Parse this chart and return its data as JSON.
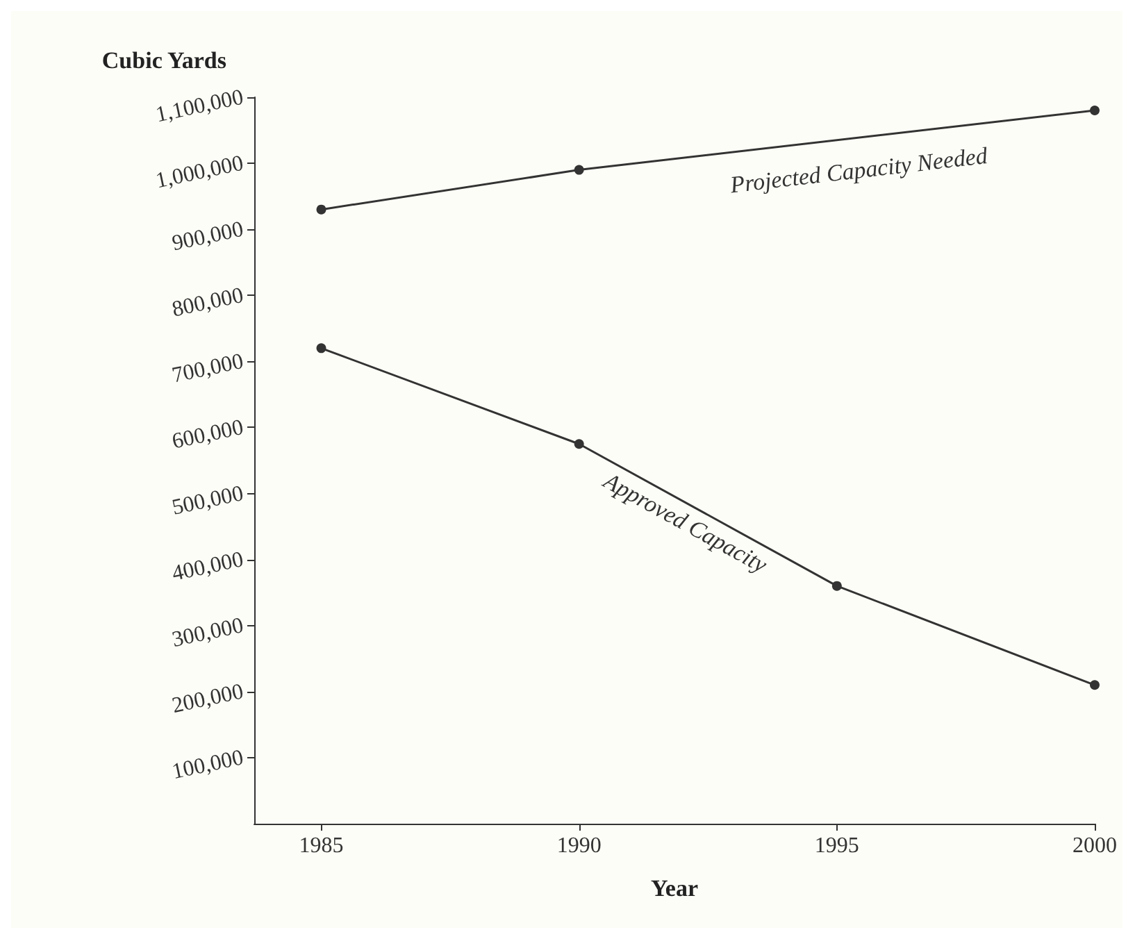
{
  "chart_data": {
    "type": "line",
    "xlabel": "Year",
    "ylabel": "Cubic Yards",
    "x": [
      1985,
      1990,
      1995,
      2000
    ],
    "series": [
      {
        "name": "Projected Capacity Needed",
        "values": [
          930000,
          990000,
          null,
          1080000
        ],
        "color": "#333333"
      },
      {
        "name": "Approved Capacity",
        "values": [
          720000,
          575000,
          360000,
          210000
        ],
        "color": "#333333"
      }
    ],
    "xlim": [
      1983.7,
      2000
    ],
    "xticks": [
      1985,
      1990,
      1995,
      2000
    ],
    "ylim": [
      0,
      1100000
    ],
    "yticks": [
      {
        "value": 100000,
        "label": "100,000"
      },
      {
        "value": 200000,
        "label": "200,000"
      },
      {
        "value": 300000,
        "label": "300,000"
      },
      {
        "value": 400000,
        "label": "400,000"
      },
      {
        "value": 500000,
        "label": "500,000"
      },
      {
        "value": 600000,
        "label": "600,000"
      },
      {
        "value": 700000,
        "label": "700,000"
      },
      {
        "value": 800000,
        "label": "800,000"
      },
      {
        "value": 900000,
        "label": "900,000"
      },
      {
        "value": 1000000,
        "label": "1,000,000"
      },
      {
        "value": 1100000,
        "label": "1,100,000"
      }
    ],
    "grid": false,
    "legend": false,
    "marker": "circle",
    "line_style": "solid"
  }
}
